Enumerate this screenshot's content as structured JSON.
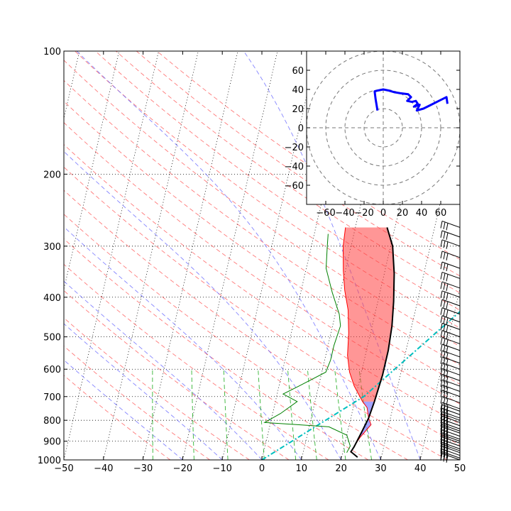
{
  "chart_data": [
    {
      "type": "line",
      "kind": "skew-t-log-p",
      "title": "",
      "xlabel": "",
      "ylabel": "",
      "xlim": [
        -50,
        50
      ],
      "ylim": [
        1000,
        100
      ],
      "y_scale": "log",
      "x_ticks": [
        -50,
        -40,
        -30,
        -20,
        -10,
        0,
        10,
        20,
        30,
        40,
        50
      ],
      "x_tick_labels": [
        "−50",
        "−40",
        "−30",
        "−20",
        "−10",
        "0",
        "10",
        "20",
        "30",
        "40",
        "50"
      ],
      "y_ticks": [
        1000,
        900,
        800,
        700,
        600,
        500,
        400,
        300,
        200,
        100
      ],
      "y_tick_labels": [
        "1000",
        "900",
        "800",
        "700",
        "600",
        "500",
        "400",
        "300",
        "200",
        "100"
      ],
      "isotherms_every_c": 10,
      "dry_adiabats_theta_k": [
        250,
        260,
        270,
        280,
        290,
        300,
        310,
        320,
        330,
        340,
        350,
        360,
        370,
        380,
        390,
        400,
        410,
        420,
        430
      ],
      "moist_adiabats_start_c": [
        -20,
        -10,
        0,
        10,
        20,
        30,
        40
      ],
      "mixing_ratio_lines_gkg": [
        0.4,
        1,
        2,
        4,
        7,
        10,
        16,
        24
      ],
      "series": [
        {
          "role": "temperature",
          "color": "#ff0000",
          "points": [
            [
              22,
              960
            ],
            [
              22.5,
              925
            ],
            [
              23.5,
              880
            ],
            [
              25.5,
              820
            ],
            [
              24.5,
              790
            ],
            [
              23.5,
              745
            ],
            [
              22,
              720
            ],
            [
              19,
              660
            ],
            [
              17,
              610
            ],
            [
              15.5,
              555
            ],
            [
              14.5,
              490
            ],
            [
              13,
              430
            ],
            [
              11,
              385
            ],
            [
              9.5,
              345
            ],
            [
              8,
              300
            ],
            [
              7.5,
              270
            ]
          ]
        },
        {
          "role": "dewpoint",
          "color": "#008000",
          "points": [
            [
              21,
              960
            ],
            [
              21.5,
              925
            ],
            [
              20,
              870
            ],
            [
              15,
              830
            ],
            [
              7,
              820
            ],
            [
              -1.5,
              810
            ],
            [
              2,
              770
            ],
            [
              5.5,
              720
            ],
            [
              1.5,
              690
            ],
            [
              5,
              660
            ],
            [
              11,
              610
            ],
            [
              11.5,
              570
            ],
            [
              11.5,
              525
            ],
            [
              12,
              470
            ],
            [
              11,
              440
            ],
            [
              8,
              390
            ],
            [
              5,
              340
            ],
            [
              4,
              300
            ],
            [
              3.5,
              280
            ]
          ]
        },
        {
          "role": "parcel",
          "color": "#000000",
          "points": [
            [
              24,
              985
            ],
            [
              22,
              955
            ],
            [
              22.5,
              930
            ],
            [
              23.5,
              860
            ],
            [
              24.5,
              790
            ],
            [
              25,
              720
            ],
            [
              25.5,
              620
            ],
            [
              25.5,
              540
            ],
            [
              25,
              470
            ],
            [
              24,
              410
            ],
            [
              22.5,
              350
            ],
            [
              20.5,
              300
            ],
            [
              18,
              270
            ]
          ]
        },
        {
          "role": "lcl-dry-adiabat",
          "color": "#00bfbf",
          "points": [
            [
              0,
              1000
            ],
            [
              22,
              700
            ],
            [
              50,
              350
            ]
          ]
        }
      ],
      "wind_barbs": {
        "x": 50,
        "pressures": [
          1000,
          990,
          975,
          960,
          950,
          940,
          925,
          910,
          900,
          890,
          875,
          860,
          850,
          840,
          825,
          810,
          800,
          790,
          775,
          760,
          750,
          725,
          700,
          680,
          660,
          640,
          620,
          600,
          580,
          560,
          540,
          520,
          500,
          480,
          460,
          440,
          420,
          400,
          380,
          360,
          340,
          320,
          300,
          285,
          270
        ]
      }
    },
    {
      "type": "line",
      "kind": "hodograph",
      "title": "",
      "xlabel": "",
      "ylabel": "",
      "xlim": [
        -80,
        80
      ],
      "ylim": [
        -80,
        80
      ],
      "x_ticks": [
        -60,
        -40,
        -20,
        0,
        20,
        40,
        60
      ],
      "x_tick_labels": [
        "−60",
        "−40",
        "−20",
        "0",
        "20",
        "40",
        "60"
      ],
      "y_ticks": [
        -60,
        -40,
        -20,
        0,
        20,
        40,
        60
      ],
      "y_tick_labels": [
        "−60",
        "−40",
        "−20",
        "0",
        "20",
        "40",
        "60"
      ],
      "rings": [
        20,
        40,
        60,
        80
      ],
      "series": [
        {
          "color": "#0000ff",
          "points": [
            [
              -6,
              18
            ],
            [
              -8,
              30
            ],
            [
              -9,
              38
            ],
            [
              -5,
              39
            ],
            [
              0,
              40
            ],
            [
              5,
              39
            ],
            [
              12,
              37
            ],
            [
              18,
              36
            ],
            [
              26,
              35
            ],
            [
              29,
              32
            ],
            [
              25,
              28
            ],
            [
              30,
              27
            ],
            [
              34,
              28
            ],
            [
              36,
              25
            ],
            [
              32,
              22
            ],
            [
              38,
              24
            ],
            [
              35,
              18
            ],
            [
              42,
              20
            ],
            [
              50,
              24
            ],
            [
              58,
              28
            ],
            [
              66,
              32
            ],
            [
              67,
              25
            ]
          ]
        }
      ]
    }
  ]
}
